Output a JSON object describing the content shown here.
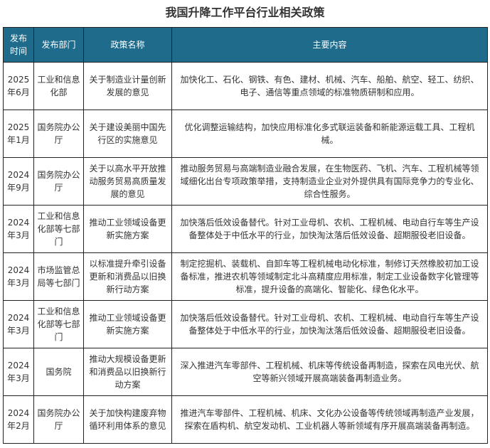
{
  "title": "我国升降工作平台行业相关政策",
  "headers": [
    "发布时间",
    "发布部门",
    "政策名称",
    "主要内容"
  ],
  "rows": [
    {
      "date": "2025年6月",
      "dept": "工业和信息化部",
      "policy": "关于制造业计量创新发展的意见",
      "content": "加快化工、石化、钢铁、有色、建材、机械、汽车、船舶、航空、轻工、纺织、电子、通信等重点领域的标准物质研制和应用。"
    },
    {
      "date": "2025年1月",
      "dept": "国务院办公厅",
      "policy": "关于建设美丽中国先行区的实施意见",
      "content": "优化调整运输结构，加快应用标准化多式联运装备和新能源运载工具、工程机械。"
    },
    {
      "date": "2024年9月",
      "dept": "国务院办公厅",
      "policy": "关于以高水平开放推动服务贸易高质量发展的意见",
      "content": "推动服务贸易与高端制造业融合发展，在生物医药、飞机、汽车、工程机械等领域细化出台专项政策举措，支持制造业企业对外提供具有国际竞争力的专业化、综合性服务。"
    },
    {
      "date": "2024年3月",
      "dept": "工业和信息化部等七部门",
      "policy": "推动工业领域设备更新实施方案",
      "content": "加快落后低效设备替代。针对工业母机、农机、工程机械、电动自行车等生产设备整体处于中低水平的行业，加快淘汰落后低效设备、超期服役老旧设备。"
    },
    {
      "date": "2024年3月",
      "dept": "市场监管总局等七部门",
      "policy": "以标准提升牵引设备更新和消费品以旧换新行动方案",
      "content": "制定挖掘机、装载机、自卸车等工程机械电动化标准，制修订天然橡胶初加工设备标准，推进农机等领域制定北斗高精度应用标准，制定工业设备数字化管理等标准，提升设备的高端化、智能化、绿色化水平。"
    },
    {
      "date": "2024年3月",
      "dept": "工业和信息化部等七部门",
      "policy": "推动工业领域设备更新实施方案",
      "content": "加快落后低效设备替代。针对工业母机、农机、工程机械、电动自行车等生产设备整体处于中低水平的行业，加快淘汰落后低效设备、超期服役老旧设备。"
    },
    {
      "date": "2024年3月",
      "dept": "国务院",
      "policy": "推动大规模设备更新和消费品以旧换新行动方案",
      "content": "深入推进汽车零部件、工程机械、机床等传统设备再制造，探索在风电光伏、航空等新兴领域开展高端装备再制造业务。"
    },
    {
      "date": "2024年2月",
      "dept": "国务院办公厅",
      "policy": "关于加快构建废弃物循环利用体系的意见",
      "content": "推进汽车零部件、工程机械、机床、文化办公设备等传统领域再制造产业发展，探索在盾构机、航空发动机、工业机器人等新领域有序开展高端装备再制造。"
    }
  ],
  "colors": {
    "header_bg": "#1e6b8c",
    "header_text": "#ffffff"
  }
}
